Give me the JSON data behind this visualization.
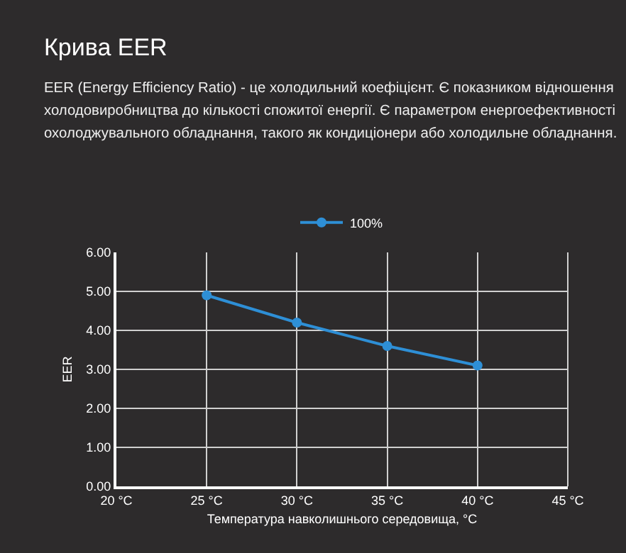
{
  "chart_data": {
    "type": "line",
    "title": "Крива EER",
    "subtitle": "EER (Energy Efficiency Ratio) - це холодильний коефіцієнт. Є показником відношення холодовиробництва до кількості спожитої енергії. Є параметром енергоефективності охолоджувального обладнання, такого як кондиціонери або холодильне обладнання.",
    "xlabel": "Температура навколишнього середовища, °C",
    "ylabel": "EER",
    "x": [
      25,
      30,
      35,
      40
    ],
    "series": [
      {
        "name": "100%",
        "color": "#2e8fd6",
        "values": [
          4.9,
          4.2,
          3.6,
          3.1
        ]
      }
    ],
    "xlim": [
      20,
      45
    ],
    "xticks": [
      {
        "value": 20,
        "label": "20 °C"
      },
      {
        "value": 25,
        "label": "25 °C"
      },
      {
        "value": 30,
        "label": "30 °C"
      },
      {
        "value": 35,
        "label": "35 °C"
      },
      {
        "value": 40,
        "label": "40 °C"
      },
      {
        "value": 45,
        "label": "45 °C"
      }
    ],
    "ylim": [
      0,
      6
    ],
    "yticks": [
      {
        "value": 0,
        "label": "0.00"
      },
      {
        "value": 1,
        "label": "1.00"
      },
      {
        "value": 2,
        "label": "2.00"
      },
      {
        "value": 3,
        "label": "3.00"
      },
      {
        "value": 4,
        "label": "4.00"
      },
      {
        "value": 5,
        "label": "5.00"
      },
      {
        "value": 6,
        "label": "6.00"
      }
    ],
    "grid": true,
    "legend": "top",
    "marker": "circle",
    "line_style": "solid"
  }
}
